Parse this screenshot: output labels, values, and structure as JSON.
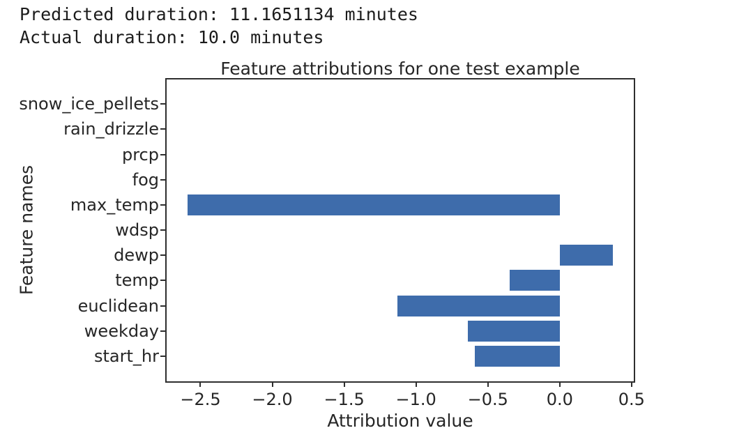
{
  "header": {
    "line1": "Predicted duration: 11.1651134 minutes",
    "line2": "Actual duration: 10.0 minutes"
  },
  "chart_data": {
    "type": "bar",
    "orientation": "horizontal",
    "title": "Feature attributions for one test example",
    "xlabel": "Attribution value",
    "ylabel": "Feature names",
    "categories": [
      "snow_ice_pellets",
      "rain_drizzle",
      "prcp",
      "fog",
      "max_temp",
      "wdsp",
      "dewp",
      "temp",
      "euclidean",
      "weekday",
      "start_hr"
    ],
    "values": [
      0,
      0,
      0,
      0,
      -2.59,
      0,
      0.37,
      -0.35,
      -1.13,
      -0.64,
      -0.59
    ],
    "xlim": [
      -2.74,
      0.52
    ],
    "x_ticks": [
      {
        "value": -2.5,
        "label": "−2.5"
      },
      {
        "value": -2.0,
        "label": "−2.0"
      },
      {
        "value": -1.5,
        "label": "−1.5"
      },
      {
        "value": -1.0,
        "label": "−1.0"
      },
      {
        "value": -0.5,
        "label": "−0.5"
      },
      {
        "value": 0.0,
        "label": "0.0"
      },
      {
        "value": 0.5,
        "label": "0.5"
      }
    ],
    "bar_color": "#3e6cab",
    "grid": false,
    "legend_position": "none"
  }
}
